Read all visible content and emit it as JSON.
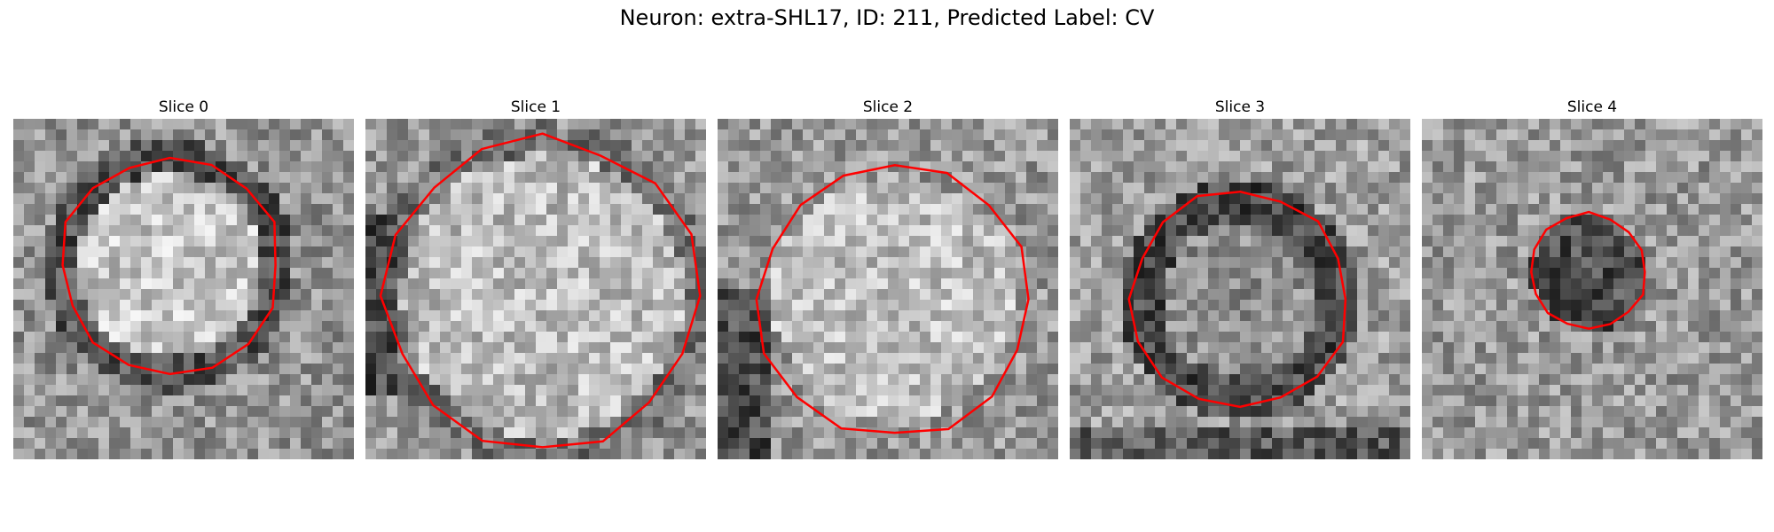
{
  "figure": {
    "title": "Neuron: extra-SHL17, ID: 211, Predicted Label: CV"
  },
  "panels": [
    {
      "title": "Slice 0",
      "pattern": "ring-bright-center",
      "contour_radius_frac": 0.32,
      "contour_cx": 0.46,
      "contour_cy": 0.43
    },
    {
      "title": "Slice 1",
      "pattern": "bright-center",
      "contour_radius_frac": 0.46,
      "contour_cx": 0.52,
      "contour_cy": 0.52
    },
    {
      "title": "Slice 2",
      "pattern": "bright-center-left-dark",
      "contour_radius_frac": 0.4,
      "contour_cx": 0.52,
      "contour_cy": 0.53
    },
    {
      "title": "Slice 3",
      "pattern": "dark-ring",
      "contour_radius_frac": 0.32,
      "contour_cx": 0.5,
      "contour_cy": 0.53
    },
    {
      "title": "Slice 4",
      "pattern": "dark-blob",
      "contour_radius_frac": 0.17,
      "contour_cx": 0.49,
      "contour_cy": 0.45
    }
  ],
  "colors": {
    "contour": "#ff0000"
  }
}
